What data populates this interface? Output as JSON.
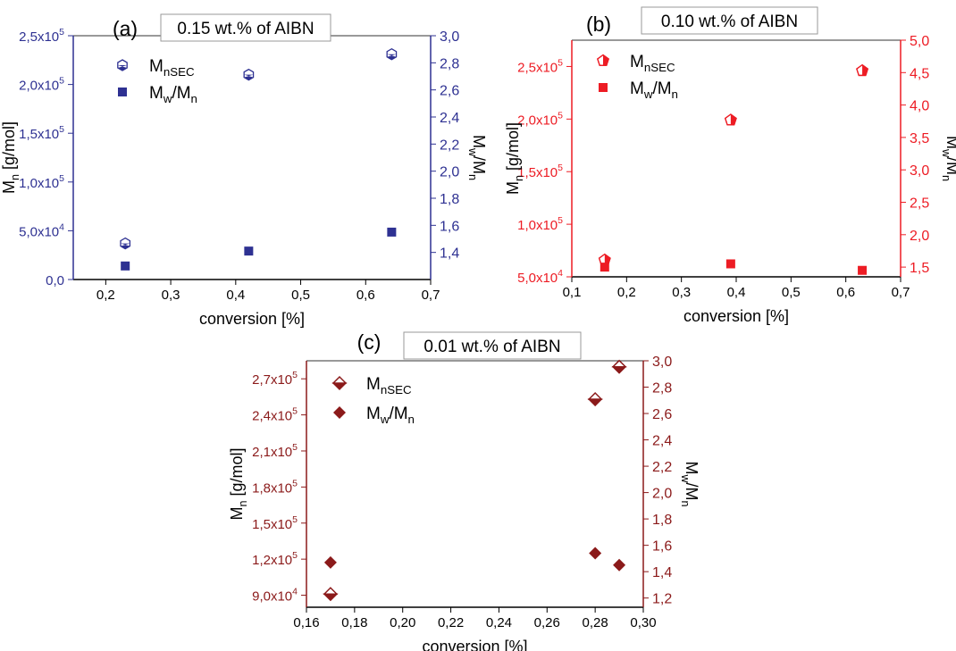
{
  "chart_data": [
    {
      "type": "scatter",
      "panel_label": "(a)",
      "title": "0.15 wt.% of AIBN",
      "color": "#2e3192",
      "xlabel": "conversion [%]",
      "ylabel": {
        "base": "M",
        "sub": "n",
        "suffix": " [g/mol]"
      },
      "y2label": "Mw/Mn",
      "xlim": [
        0.15,
        0.7
      ],
      "ylim": [
        0,
        250000
      ],
      "y2lim": [
        1.2,
        3.0
      ],
      "xticks": [
        0.2,
        0.3,
        0.4,
        0.5,
        0.6,
        0.7
      ],
      "xtick_labels": [
        "0,2",
        "0,3",
        "0,4",
        "0,5",
        "0,6",
        "0,7"
      ],
      "yticks": [
        {
          "v": 0,
          "m": "0,0",
          "e": ""
        },
        {
          "v": 50000,
          "m": "5,0x10",
          "e": "4"
        },
        {
          "v": 100000,
          "m": "1,0x10",
          "e": "5"
        },
        {
          "v": 150000,
          "m": "1,5x10",
          "e": "5"
        },
        {
          "v": 200000,
          "m": "2,0x10",
          "e": "5"
        },
        {
          "v": 250000,
          "m": "2,5x10",
          "e": "5"
        }
      ],
      "y2ticks": [
        1.4,
        1.6,
        1.8,
        2.0,
        2.2,
        2.4,
        2.6,
        2.8,
        3.0
      ],
      "y2tick_labels": [
        "1,4",
        "1,6",
        "1,8",
        "2,0",
        "2,2",
        "2,4",
        "2,6",
        "2,8",
        "3,0"
      ],
      "legend": [
        {
          "base": "M",
          "sub": "nSEC",
          "marker": "hexagon-half"
        },
        {
          "base": "M",
          "sub": "w",
          "mid": "/M",
          "sub2": "n",
          "marker": "square"
        }
      ],
      "series": [
        {
          "name": "MnSEC",
          "axis": "left",
          "marker": "hexagon-half",
          "points": [
            [
              0.23,
              37000
            ],
            [
              0.42,
              210000
            ],
            [
              0.64,
              231000
            ]
          ]
        },
        {
          "name": "Mw/Mn",
          "axis": "right",
          "marker": "square",
          "points": [
            [
              0.23,
              1.3
            ],
            [
              0.42,
              1.41
            ],
            [
              0.64,
              1.55
            ]
          ]
        }
      ]
    },
    {
      "type": "scatter",
      "panel_label": "(b)",
      "title": "0.10 wt.% of AIBN",
      "color": "#ed1c24",
      "xlabel": "conversion [%]",
      "ylabel": {
        "base": "M",
        "sub": "n",
        "suffix": " [g/mol]"
      },
      "y2label": "Mw/Mn",
      "xlim": [
        0.1,
        0.7
      ],
      "ylim": [
        50000,
        275000
      ],
      "y2lim": [
        1.35,
        5.0
      ],
      "xticks": [
        0.1,
        0.2,
        0.3,
        0.4,
        0.5,
        0.6,
        0.7
      ],
      "xtick_labels": [
        "0,1",
        "0,2",
        "0,3",
        "0,4",
        "0,5",
        "0,6",
        "0,7"
      ],
      "yticks": [
        {
          "v": 50000,
          "m": "5,0x10",
          "e": "4"
        },
        {
          "v": 100000,
          "m": "1,0x10",
          "e": "5"
        },
        {
          "v": 150000,
          "m": "1,5x10",
          "e": "5"
        },
        {
          "v": 200000,
          "m": "2,0x10",
          "e": "5"
        },
        {
          "v": 250000,
          "m": "2,5x10",
          "e": "5"
        }
      ],
      "y2ticks": [
        1.5,
        2.0,
        2.5,
        3.0,
        3.5,
        4.0,
        4.5,
        5.0
      ],
      "y2tick_labels": [
        "1,5",
        "2,0",
        "2,5",
        "3,0",
        "3,5",
        "4,0",
        "4,5",
        "5,0"
      ],
      "legend": [
        {
          "base": "M",
          "sub": "nSEC",
          "marker": "pentagon-half"
        },
        {
          "base": "M",
          "sub": "w",
          "mid": "/M",
          "sub2": "n",
          "marker": "square"
        }
      ],
      "series": [
        {
          "name": "MnSEC",
          "axis": "left",
          "marker": "pentagon-half",
          "points": [
            [
              0.16,
              66000
            ],
            [
              0.39,
              199000
            ],
            [
              0.63,
              246000
            ]
          ]
        },
        {
          "name": "Mw/Mn",
          "axis": "right",
          "marker": "square",
          "points": [
            [
              0.16,
              1.5
            ],
            [
              0.39,
              1.55
            ],
            [
              0.63,
              1.45
            ]
          ]
        }
      ]
    },
    {
      "type": "scatter",
      "panel_label": "(c)",
      "title": "0.01 wt.% of AIBN",
      "color": "#8b1a1a",
      "xlabel": "conversion [%]",
      "ylabel": {
        "base": "M",
        "sub": "n",
        "suffix": " [g/mol]"
      },
      "y2label": "Mw/Mn",
      "xlim": [
        0.16,
        0.3
      ],
      "ylim": [
        80000,
        285000
      ],
      "y2lim": [
        1.13,
        3.0
      ],
      "xticks": [
        0.16,
        0.18,
        0.2,
        0.22,
        0.24,
        0.26,
        0.28,
        0.3
      ],
      "xtick_labels": [
        "0,16",
        "0,18",
        "0,20",
        "0,22",
        "0,24",
        "0,26",
        "0,28",
        "0,30"
      ],
      "yticks": [
        {
          "v": 90000,
          "m": "9,0x10",
          "e": "4"
        },
        {
          "v": 120000,
          "m": "1,2x10",
          "e": "5"
        },
        {
          "v": 150000,
          "m": "1,5x10",
          "e": "5"
        },
        {
          "v": 180000,
          "m": "1,8x10",
          "e": "5"
        },
        {
          "v": 210000,
          "m": "2,1x10",
          "e": "5"
        },
        {
          "v": 240000,
          "m": "2,4x10",
          "e": "5"
        },
        {
          "v": 270000,
          "m": "2,7x10",
          "e": "5"
        }
      ],
      "y2ticks": [
        1.2,
        1.4,
        1.6,
        1.8,
        2.0,
        2.2,
        2.4,
        2.6,
        2.8,
        3.0
      ],
      "y2tick_labels": [
        "1,2",
        "1,4",
        "1,6",
        "1,8",
        "2,0",
        "2,2",
        "2,4",
        "2,6",
        "2,8",
        "3,0"
      ],
      "legend": [
        {
          "base": "M",
          "sub": "nSEC",
          "marker": "diamond-half"
        },
        {
          "base": "M",
          "sub": "w",
          "mid": "/M",
          "sub2": "n",
          "marker": "diamond"
        }
      ],
      "series": [
        {
          "name": "MnSEC",
          "axis": "left",
          "marker": "diamond-half",
          "points": [
            [
              0.17,
              91000
            ],
            [
              0.28,
              253000
            ],
            [
              0.29,
              280000
            ]
          ]
        },
        {
          "name": "Mw/Mn",
          "axis": "right",
          "marker": "diamond",
          "points": [
            [
              0.17,
              1.47
            ],
            [
              0.28,
              1.54
            ],
            [
              0.29,
              1.45
            ]
          ]
        }
      ]
    }
  ]
}
